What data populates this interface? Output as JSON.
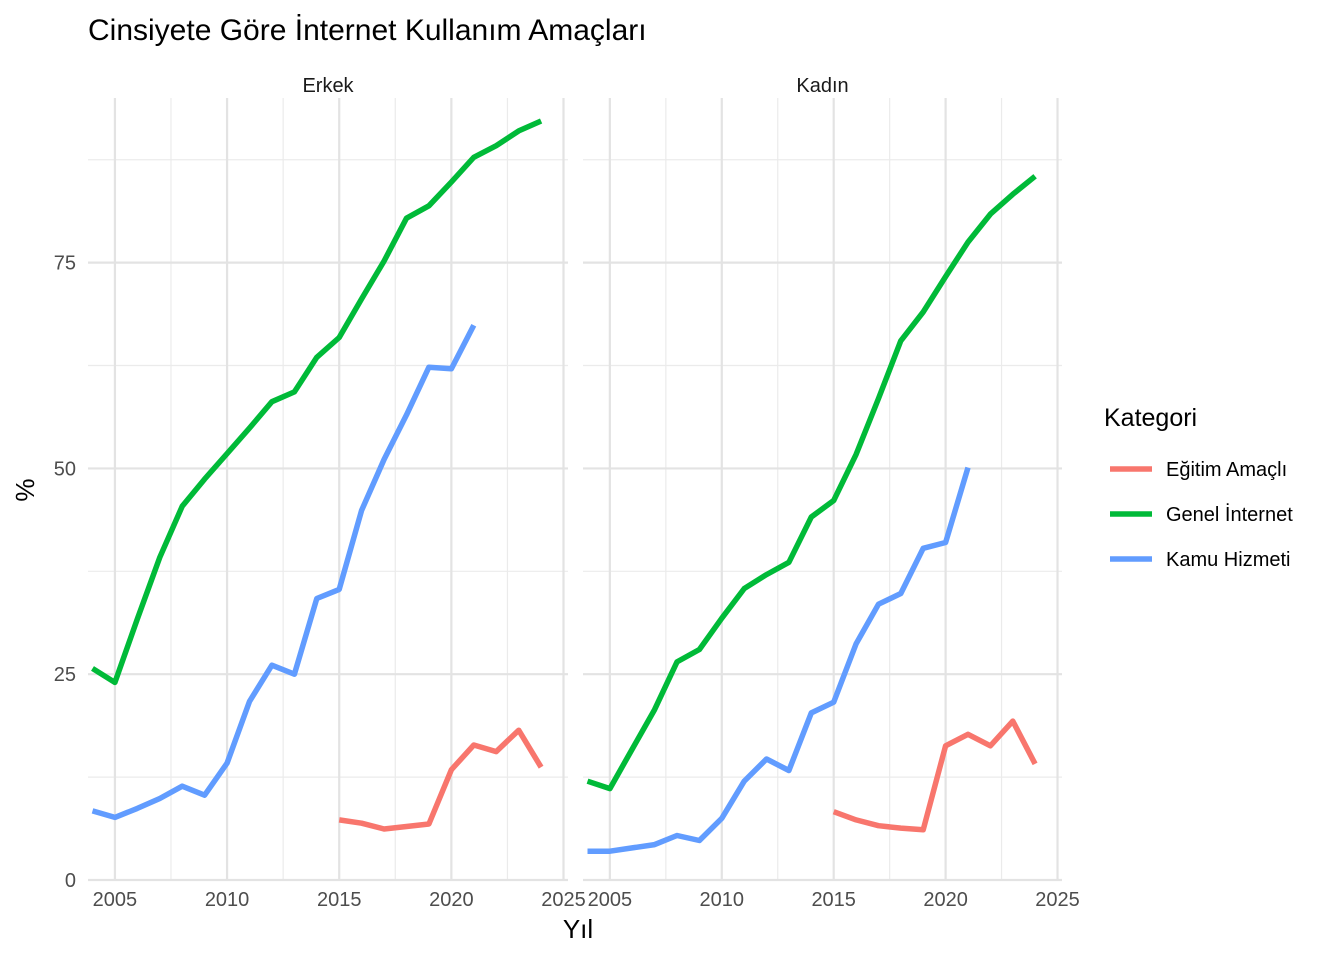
{
  "chart_data": {
    "type": "line",
    "title": "Cinsiyete Göre İnternet Kullanım Amaçları",
    "xlabel": "Yıl",
    "ylabel": "%",
    "xlim": [
      2003.8,
      2025.2
    ],
    "ylim": [
      0,
      95
    ],
    "x_ticks": [
      "2005",
      "2010",
      "2015",
      "2020",
      "2025"
    ],
    "y_ticks": [
      "0",
      "25",
      "50",
      "75"
    ],
    "grid": true,
    "legend": {
      "title": "Kategori",
      "position": "right",
      "entries": [
        {
          "name": "Eğitim Amaçlı",
          "color": "#F8766D"
        },
        {
          "name": "Genel İnternet",
          "color": "#00BA38"
        },
        {
          "name": "Kamu Hizmeti",
          "color": "#619CFF"
        }
      ]
    },
    "panels": [
      {
        "label": "Erkek",
        "series": [
          {
            "name": "Eğitim Amaçlı",
            "color": "#F8766D",
            "x": [
              2015,
              2016,
              2017,
              2018,
              2019,
              2020,
              2021,
              2022,
              2023,
              2024
            ],
            "values": [
              7.3,
              6.9,
              6.2,
              6.5,
              6.8,
              13.4,
              16.4,
              15.6,
              18.2,
              13.7
            ]
          },
          {
            "name": "Genel İnternet",
            "color": "#00BA38",
            "x": [
              2004,
              2005,
              2006,
              2007,
              2008,
              2009,
              2010,
              2011,
              2012,
              2013,
              2014,
              2015,
              2016,
              2017,
              2018,
              2019,
              2020,
              2021,
              2022,
              2023,
              2024
            ],
            "values": [
              25.7,
              24.0,
              31.7,
              39.2,
              45.4,
              48.7,
              51.8,
              54.9,
              58.1,
              59.3,
              63.5,
              65.9,
              70.6,
              75.2,
              80.4,
              81.9,
              84.8,
              87.8,
              89.2,
              91.0,
              92.2
            ]
          },
          {
            "name": "Kamu Hizmeti",
            "color": "#619CFF",
            "x": [
              2004,
              2005,
              2006,
              2007,
              2008,
              2009,
              2010,
              2011,
              2012,
              2013,
              2014,
              2015,
              2016,
              2017,
              2018,
              2019,
              2020,
              2021
            ],
            "values": [
              8.4,
              7.6,
              8.7,
              9.9,
              11.4,
              10.3,
              14.2,
              21.7,
              26.1,
              25.0,
              34.2,
              35.3,
              44.9,
              51.1,
              56.5,
              62.3,
              62.1,
              67.4
            ]
          }
        ]
      },
      {
        "label": "Kadın",
        "series": [
          {
            "name": "Eğitim Amaçlı",
            "color": "#F8766D",
            "x": [
              2015,
              2016,
              2017,
              2018,
              2019,
              2020,
              2021,
              2022,
              2023,
              2024
            ],
            "values": [
              8.3,
              7.3,
              6.6,
              6.3,
              6.1,
              16.3,
              17.7,
              16.3,
              19.3,
              14.1
            ]
          },
          {
            "name": "Genel İnternet",
            "color": "#00BA38",
            "x": [
              2004,
              2005,
              2006,
              2007,
              2008,
              2009,
              2010,
              2011,
              2012,
              2013,
              2014,
              2015,
              2016,
              2017,
              2018,
              2019,
              2020,
              2021,
              2022,
              2023,
              2024
            ],
            "values": [
              12.0,
              11.1,
              15.9,
              20.7,
              26.5,
              28.0,
              31.8,
              35.4,
              37.1,
              38.6,
              44.1,
              46.1,
              51.7,
              58.5,
              65.5,
              69.0,
              73.3,
              77.5,
              80.9,
              83.3,
              85.5
            ]
          },
          {
            "name": "Kamu Hizmeti",
            "color": "#619CFF",
            "x": [
              2004,
              2005,
              2006,
              2007,
              2008,
              2009,
              2010,
              2011,
              2012,
              2013,
              2014,
              2015,
              2016,
              2017,
              2018,
              2019,
              2020,
              2021
            ],
            "values": [
              3.5,
              3.5,
              3.9,
              4.3,
              5.4,
              4.8,
              7.5,
              12.0,
              14.7,
              13.3,
              20.3,
              21.6,
              28.7,
              33.5,
              34.8,
              40.3,
              41.0,
              50.1
            ]
          }
        ]
      }
    ]
  }
}
